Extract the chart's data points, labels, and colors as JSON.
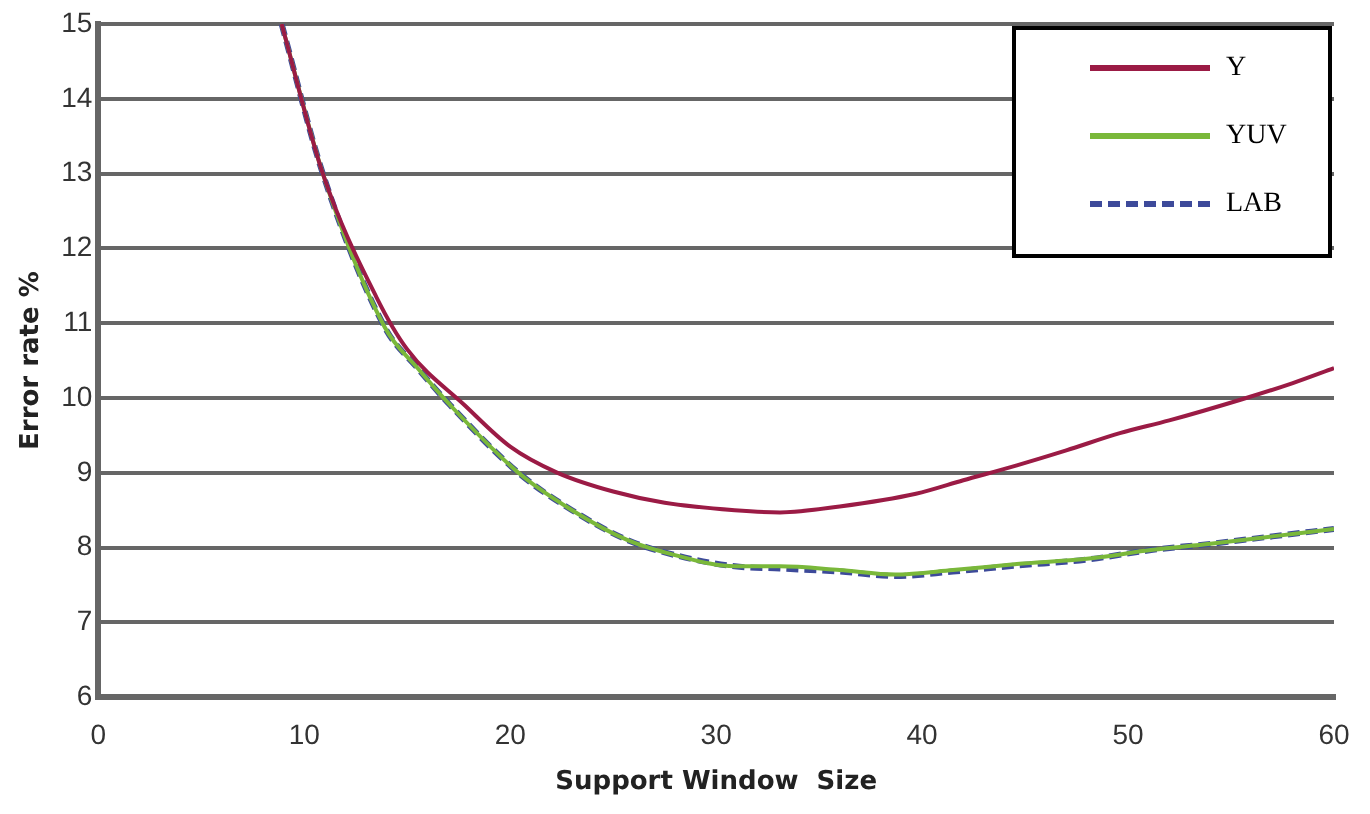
{
  "chart_data": {
    "type": "line",
    "xlabel": "Support Window  Size",
    "ylabel": "Error rate %",
    "xlim": [
      0,
      60
    ],
    "xticks": [
      0,
      10,
      20,
      30,
      40,
      50,
      60
    ],
    "ylim": [
      6,
      15
    ],
    "yticks": [
      6,
      7,
      8,
      9,
      10,
      11,
      12,
      13,
      14,
      15
    ],
    "grid": "y",
    "legend": "top right",
    "marker": "none",
    "series": [
      {
        "name": "Y",
        "color": "#9b1b45",
        "line_style": "solid",
        "x": [
          8.9,
          10.9,
          13.5,
          15,
          17.8,
          20,
          22.3,
          25,
          27.5,
          30.9,
          33.1,
          36,
          39.7,
          42,
          44.6,
          47,
          49.6,
          52,
          55.5,
          58,
          60
        ],
        "values": [
          15,
          13.0,
          11.35,
          10.65,
          9.9,
          9.35,
          9.0,
          8.75,
          8.6,
          8.5,
          8.47,
          8.55,
          8.72,
          8.9,
          9.1,
          9.3,
          9.53,
          9.7,
          9.98,
          10.2,
          10.4
        ]
      },
      {
        "name": "YUV",
        "color": "#7ab83a",
        "line_style": "solid",
        "x": [
          8.9,
          10.9,
          13.9,
          15.5,
          17.1,
          20.4,
          23,
          25.7,
          28,
          30.9,
          33.1,
          36,
          38.7,
          41.5,
          44.6,
          48,
          51.2,
          54,
          57,
          60
        ],
        "values": [
          15,
          13.0,
          10.95,
          10.4,
          9.9,
          9.0,
          8.5,
          8.1,
          7.9,
          7.75,
          7.75,
          7.7,
          7.64,
          7.7,
          7.78,
          7.85,
          7.97,
          8.05,
          8.15,
          8.25
        ]
      },
      {
        "name": "LAB",
        "color": "#3d4a9a",
        "line_style": "dashed",
        "x": [
          8.9,
          10.9,
          13.9,
          15.5,
          17.1,
          20.4,
          23,
          25.7,
          28,
          30.9,
          33.1,
          36,
          38.7,
          41.5,
          44.6,
          48,
          51.2,
          54,
          57,
          60
        ],
        "values": [
          15,
          13.0,
          10.95,
          10.4,
          9.9,
          9.0,
          8.5,
          8.1,
          7.9,
          7.75,
          7.72,
          7.68,
          7.62,
          7.68,
          7.76,
          7.84,
          7.97,
          8.05,
          8.15,
          8.25
        ]
      }
    ]
  }
}
